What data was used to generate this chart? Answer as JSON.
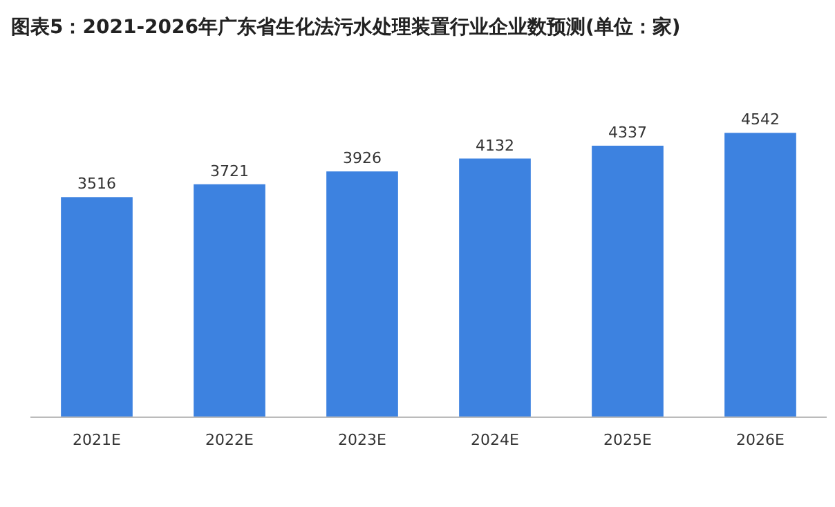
{
  "chart_data": {
    "type": "bar",
    "title": "图表5：2021-2026年广东省生化法污水处理装置行业企业数预测(单位：家)",
    "categories": [
      "2021E",
      "2022E",
      "2023E",
      "2024E",
      "2025E",
      "2026E"
    ],
    "values": [
      3516,
      3721,
      3926,
      4132,
      4337,
      4542
    ],
    "color": "#3d82e0",
    "data_labels": true
  }
}
